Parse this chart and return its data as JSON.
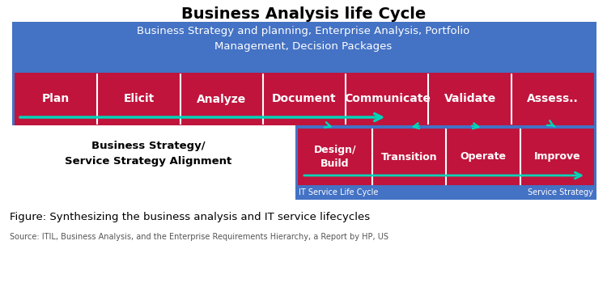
{
  "title": "Business Analysis life Cycle",
  "title_fontsize": 14,
  "blue_bg_color": "#4472C4",
  "red_bg_color": "#C0143C",
  "white": "#FFFFFF",
  "cyan_arrow": "#00D4B8",
  "top_text": "Business Strategy and planning, Enterprise Analysis, Portfolio\nManagement, Decision Packages",
  "ba_steps": [
    "Plan",
    "Elicit",
    "Analyze",
    "Document",
    "Communicate",
    "Validate",
    "Assess.."
  ],
  "it_steps": [
    "Design/\nBuild",
    "Transition",
    "Operate",
    "Improve"
  ],
  "left_label_line1": "Business Strategy/",
  "left_label_line2": "Service Strategy Alignment",
  "it_left_label": "IT Service Life Cycle",
  "it_right_label": "Service Strategy",
  "figure_caption": "Figure: Synthesizing the business analysis and IT service lifecycles",
  "source_text": "Source: ITIL, Business Analysis, and the Enterprise Requirements Hierarchy, a Report by HP, US"
}
